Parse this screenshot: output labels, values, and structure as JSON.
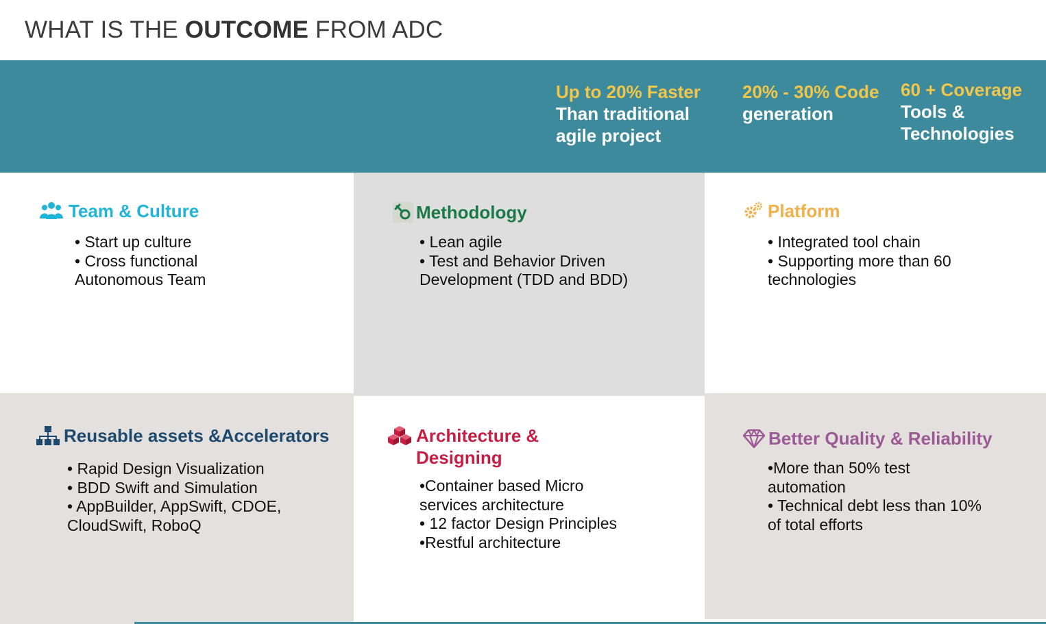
{
  "title": {
    "prefix": "WHAT IS THE ",
    "bold": "OUTCOME",
    "suffix": " FROM ADC"
  },
  "stats": [
    {
      "highlight": "Up to 20% Faster",
      "text": "Than traditional agile project"
    },
    {
      "highlight": "20% - 30% Code",
      "text": "generation"
    },
    {
      "highlight": "60 + Coverage",
      "text": "Tools & Technologies"
    }
  ],
  "cells": {
    "team": {
      "icon": "team-people-icon",
      "heading": "Team & Culture",
      "color": "#1fb4d8",
      "bullets": [
        "• Start up culture",
        "• Cross functional Autonomous Team"
      ]
    },
    "methodology": {
      "icon": "pen-nib-icon",
      "heading": "Methodology",
      "color": "#1a7a45",
      "bullets": [
        "• Lean agile",
        "• Test and Behavior Driven Development (TDD and BDD)"
      ]
    },
    "platform": {
      "icon": "gears-icon",
      "heading": "Platform",
      "color": "#f0b04a",
      "bullets": [
        "• Integrated tool chain",
        "• Supporting more than 60 technologies"
      ]
    },
    "reusable": {
      "icon": "org-chart-icon",
      "heading": "Reusable assets &Accelerators",
      "color": "#1e4a70",
      "bullets": [
        "• Rapid Design Visualization",
        "• BDD Swift and Simulation",
        "• AppBuilder, AppSwift, CDOE, CloudSwift, RoboQ"
      ]
    },
    "architecture": {
      "icon": "cubes-icon",
      "heading": "Architecture & Designing",
      "color": "#c81e44",
      "bullets": [
        "•Container based Micro services architecture",
        "• 12 factor Design Principles",
        "•Restful architecture"
      ]
    },
    "quality": {
      "icon": "diamond-icon",
      "heading": "Better Quality & Reliability",
      "color": "#9b5a96",
      "bullets": [
        "•More than 50% test automation",
        "• Technical debt less than 10% of total efforts"
      ]
    }
  }
}
